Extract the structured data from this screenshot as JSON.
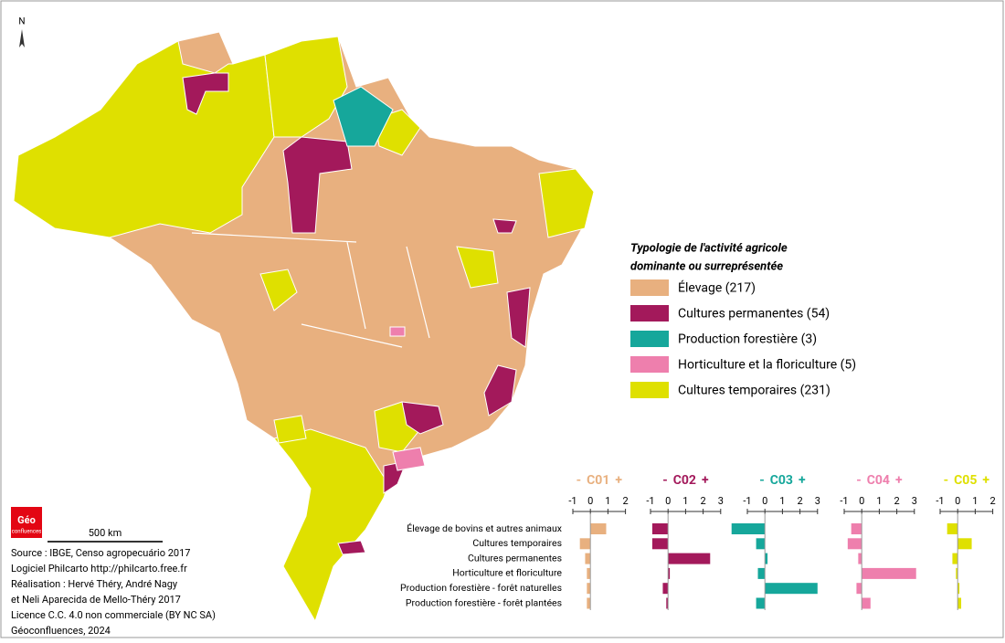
{
  "north_label": "N",
  "legend": {
    "title": [
      "Typologie de l'activité agricole",
      "dominante ou surreprésentée"
    ],
    "items": [
      {
        "label": "Élevage (217)",
        "color": "#e8b07f"
      },
      {
        "label": "Cultures permanentes (54)",
        "color": "#a3195b"
      },
      {
        "label": "Production forestière (3)",
        "color": "#16a79b"
      },
      {
        "label": "Horticulture et la floriculture (5)",
        "color": "#ee7fad"
      },
      {
        "label": "Cultures temporaires (231)",
        "color": "#dfe000"
      }
    ]
  },
  "profiles": {
    "low_label": "-",
    "high_label": "+",
    "variables": [
      "Élevage de bovins et autres animaux",
      "Cultures temporaires",
      "Cultures permanentes",
      "Horticulture et floriculture",
      "Production forestière - forêt naturelles",
      "Production forestière - forêt plantées"
    ],
    "charts": [
      {
        "name": "C01",
        "color": "#e8b07f",
        "xlim": [
          -1,
          2
        ],
        "xticks": [
          -1,
          0,
          1,
          2
        ],
        "values": [
          0.9,
          -0.6,
          -0.3,
          -0.2,
          -0.2,
          -0.2
        ]
      },
      {
        "name": "C02",
        "color": "#a3195b",
        "xlim": [
          -1,
          3
        ],
        "xticks": [
          -1,
          0,
          1,
          2,
          3
        ],
        "values": [
          -0.9,
          -0.9,
          2.4,
          0.1,
          -0.3,
          -0.1
        ]
      },
      {
        "name": "C03",
        "color": "#16a79b",
        "xlim": [
          -1,
          3
        ],
        "xticks": [
          -1,
          0,
          1,
          2,
          3
        ],
        "values": [
          -1.9,
          -0.5,
          0.15,
          -0.4,
          3.0,
          -0.5
        ]
      },
      {
        "name": "C04",
        "color": "#ee7fad",
        "xlim": [
          -1,
          3
        ],
        "xticks": [
          -1,
          0,
          1,
          2,
          3
        ],
        "values": [
          -0.6,
          -0.8,
          -0.2,
          3.1,
          -0.3,
          0.5
        ]
      },
      {
        "name": "C05",
        "color": "#dfe000",
        "xlim": [
          -1,
          2
        ],
        "xticks": [
          -1,
          0,
          1,
          2
        ],
        "values": [
          -0.6,
          0.8,
          -0.3,
          -0.1,
          0.1,
          0.2
        ]
      }
    ]
  },
  "logo": [
    "Géo",
    "confluences"
  ],
  "scale": "500 km",
  "credits": [
    "Source : IBGE, Censo agropecuário 2017",
    "Logiciel Philcarto http://philcarto.free.fr",
    "Réalisation : Hervé Théry, André Nagy",
    "et Neli Aparecida de Mello-Théry 2017",
    "Licence C.C. 4.0 non commerciale (BY NC SA)",
    "Géoconfluences, 2024"
  ]
}
